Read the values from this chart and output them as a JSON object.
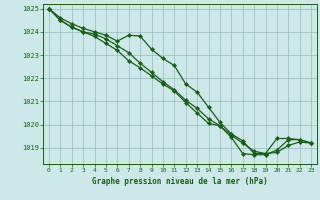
{
  "title": "Graphe pression niveau de la mer (hPa)",
  "background_color": "#cce8e8",
  "plot_bg_color": "#cce8e8",
  "line_color": "#1a5c1a",
  "grid_color": "#99bbbb",
  "text_color": "#1a5c1a",
  "ylim": [
    1018.3,
    1025.2
  ],
  "xlim": [
    -0.5,
    23.5
  ],
  "yticks": [
    1019,
    1020,
    1021,
    1022,
    1023,
    1024,
    1025
  ],
  "xticks": [
    0,
    1,
    2,
    3,
    4,
    5,
    6,
    7,
    8,
    9,
    10,
    11,
    12,
    13,
    14,
    15,
    16,
    17,
    18,
    19,
    20,
    21,
    22,
    23
  ],
  "series": [
    [
      1025.0,
      1024.6,
      1024.35,
      1024.15,
      1024.0,
      1023.85,
      1023.6,
      1023.85,
      1023.82,
      1023.25,
      1022.85,
      1022.55,
      1021.75,
      1021.4,
      1020.75,
      1020.1,
      1019.6,
      1019.3,
      1018.75,
      1018.75,
      1019.4,
      1019.4,
      1019.35,
      1019.2
    ],
    [
      1025.0,
      1024.5,
      1024.2,
      1024.0,
      1023.8,
      1023.5,
      1023.2,
      1022.75,
      1022.45,
      1022.1,
      1021.75,
      1021.45,
      1020.95,
      1020.5,
      1020.05,
      1019.95,
      1019.45,
      1018.75,
      1018.7,
      1018.7,
      1018.9,
      1019.35,
      1019.35,
      1019.2
    ],
    [
      1025.0,
      1024.5,
      1024.2,
      1024.0,
      1023.9,
      1023.7,
      1023.4,
      1023.1,
      1022.65,
      1022.25,
      1021.85,
      1021.5,
      1021.05,
      1020.7,
      1020.25,
      1019.95,
      1019.55,
      1019.2,
      1018.85,
      1018.75,
      1018.8,
      1019.1,
      1019.25,
      1019.2
    ]
  ]
}
